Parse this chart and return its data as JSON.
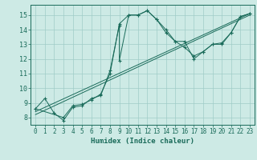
{
  "xlabel": "Humidex (Indice chaleur)",
  "xlim": [
    -0.5,
    23.5
  ],
  "ylim": [
    7.5,
    15.7
  ],
  "xticks": [
    0,
    1,
    2,
    3,
    4,
    5,
    6,
    7,
    8,
    9,
    10,
    11,
    12,
    13,
    14,
    15,
    16,
    17,
    18,
    19,
    20,
    21,
    22,
    23
  ],
  "yticks": [
    8,
    9,
    10,
    11,
    12,
    13,
    14,
    15
  ],
  "bg_color": "#cdeae5",
  "grid_color_major": "#a0ccc8",
  "grid_color_minor": "#b8ddd9",
  "line_color": "#1a6b5a",
  "curve1_x": [
    0,
    1,
    2,
    3,
    4,
    5,
    6,
    7,
    8,
    9,
    9,
    10,
    11,
    12,
    13,
    14,
    15,
    16,
    17,
    18,
    19,
    20,
    21,
    22,
    23
  ],
  "curve1_y": [
    8.6,
    9.3,
    8.3,
    7.8,
    8.7,
    8.8,
    9.3,
    9.5,
    11.2,
    14.3,
    11.9,
    15.0,
    15.0,
    15.3,
    14.7,
    14.0,
    13.2,
    13.2,
    12.0,
    12.5,
    13.0,
    13.0,
    13.8,
    14.9,
    15.1
  ],
  "curve2_x": [
    0,
    3,
    4,
    5,
    6,
    7,
    8,
    9,
    10,
    11,
    12,
    13,
    14,
    15,
    16,
    17,
    18,
    19,
    20,
    21,
    22,
    23
  ],
  "curve2_y": [
    8.6,
    8.0,
    8.8,
    8.9,
    9.2,
    9.6,
    11.0,
    14.4,
    15.0,
    15.0,
    15.3,
    14.7,
    13.8,
    13.2,
    12.8,
    12.2,
    12.5,
    13.0,
    13.1,
    13.8,
    14.9,
    15.1
  ],
  "trend_x": [
    0,
    23
  ],
  "trend_y": [
    8.2,
    15.0
  ],
  "trend2_x": [
    0,
    23
  ],
  "trend2_y": [
    8.4,
    15.1
  ],
  "tick_fontsize": 5.5,
  "xlabel_fontsize": 6.5
}
